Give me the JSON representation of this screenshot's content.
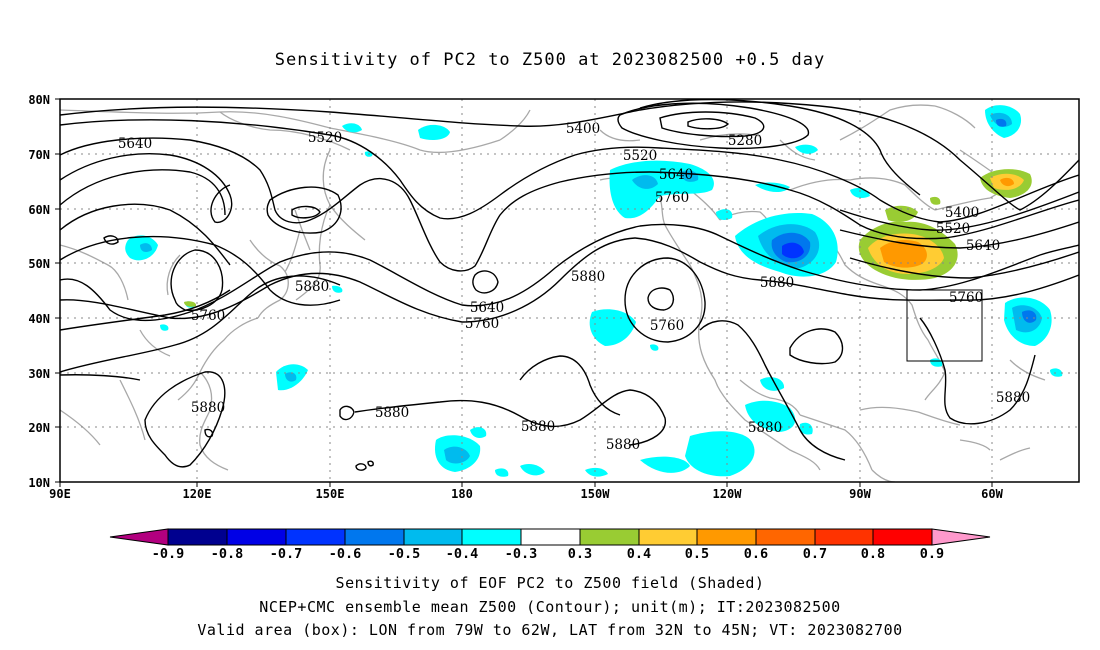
{
  "title": "Sensitivity of PC2 to Z500 at 2023082500 +0.5 day",
  "map": {
    "lat_labels": [
      "80N",
      "70N",
      "60N",
      "50N",
      "40N",
      "30N",
      "20N",
      "10N"
    ],
    "lon_labels": [
      "90E",
      "120E",
      "150E",
      "180",
      "150W",
      "120W",
      "90W",
      "60W"
    ],
    "contour_labels": [
      "5640",
      "5520",
      "5400",
      "5280",
      "5520",
      "5640",
      "5760",
      "5400",
      "5520",
      "5640",
      "5760",
      "5880",
      "5880",
      "5640",
      "5760",
      "5760",
      "5880",
      "5760",
      "5880",
      "5880",
      "5880",
      "5880",
      "5880",
      "5880",
      "5880"
    ],
    "box": {
      "lon_from": "79W",
      "lon_to": "62W",
      "lat_from": "32N",
      "lat_to": "45N"
    }
  },
  "colorbar": {
    "labels": [
      "-0.9",
      "-0.8",
      "-0.7",
      "-0.6",
      "-0.5",
      "-0.4",
      "-0.3",
      "0.3",
      "0.4",
      "0.5",
      "0.6",
      "0.7",
      "0.8",
      "0.9"
    ],
    "colors": {
      "left_tip": "#b2007f",
      "neg": [
        "#00008f",
        "#0000e6",
        "#0033ff",
        "#0077ee",
        "#00bbee",
        "#00ffff"
      ],
      "mid": "#ffffff",
      "pos": [
        "#99cc33",
        "#ffcc33",
        "#ff9900",
        "#ff6600",
        "#ff3300",
        "#ff0000"
      ],
      "right_tip": "#ff99cc"
    }
  },
  "footer": {
    "line1": "Sensitivity of EOF PC2 to Z500 field (Shaded)",
    "line2": "NCEP+CMC ensemble mean Z500 (Contour); unit(m); IT:2023082500",
    "line3": "Valid area (box): LON from 79W to 62W, LAT from 32N to 45N; VT: 2023082700"
  }
}
